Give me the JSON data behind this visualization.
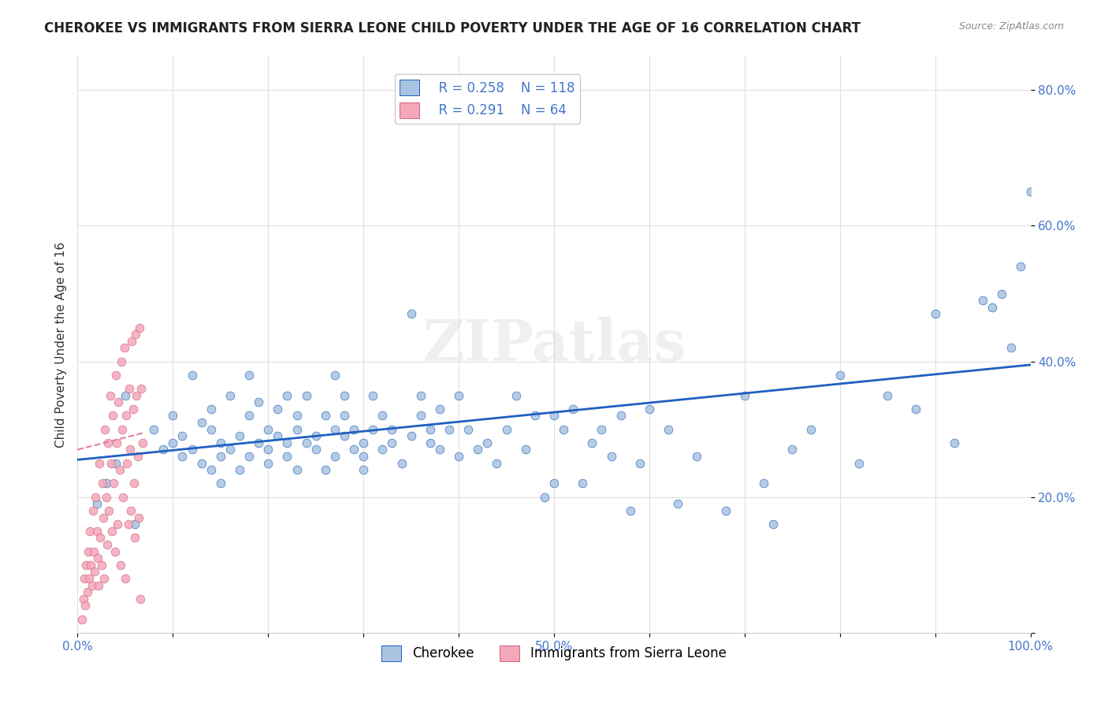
{
  "title": "CHEROKEE VS IMMIGRANTS FROM SIERRA LEONE CHILD POVERTY UNDER THE AGE OF 16 CORRELATION CHART",
  "source": "Source: ZipAtlas.com",
  "xlabel": "",
  "ylabel": "Child Poverty Under the Age of 16",
  "xlim": [
    0.0,
    1.0
  ],
  "ylim": [
    0.0,
    0.85
  ],
  "x_ticks": [
    0.0,
    0.1,
    0.2,
    0.3,
    0.4,
    0.5,
    0.6,
    0.7,
    0.8,
    0.9,
    1.0
  ],
  "x_tick_labels": [
    "0.0%",
    "",
    "",
    "",
    "",
    "50.0%",
    "",
    "",
    "",
    "",
    "100.0%"
  ],
  "y_ticks": [
    0.0,
    0.2,
    0.4,
    0.6,
    0.8
  ],
  "y_tick_labels": [
    "",
    "20.0%",
    "40.0%",
    "60.0%",
    "80.0%"
  ],
  "watermark": "ZIPatlas",
  "legend_r1": "R = 0.258",
  "legend_n1": "N = 118",
  "legend_r2": "R = 0.291",
  "legend_n2": "N = 64",
  "color_cherokee": "#a8c4e0",
  "color_sierra_leone": "#f4a7b9",
  "color_line_cherokee": "#2060c0",
  "color_line_sierra_leone": "#e080a0",
  "color_r_value": "#4477cc",
  "background_color": "#ffffff",
  "cherokee_x": [
    0.05,
    0.08,
    0.09,
    0.1,
    0.1,
    0.11,
    0.11,
    0.12,
    0.12,
    0.13,
    0.13,
    0.14,
    0.14,
    0.14,
    0.15,
    0.15,
    0.15,
    0.16,
    0.16,
    0.17,
    0.17,
    0.18,
    0.18,
    0.18,
    0.19,
    0.19,
    0.2,
    0.2,
    0.2,
    0.21,
    0.21,
    0.22,
    0.22,
    0.22,
    0.23,
    0.23,
    0.23,
    0.24,
    0.24,
    0.25,
    0.25,
    0.26,
    0.26,
    0.27,
    0.27,
    0.27,
    0.28,
    0.28,
    0.28,
    0.29,
    0.29,
    0.3,
    0.3,
    0.3,
    0.31,
    0.31,
    0.32,
    0.32,
    0.33,
    0.33,
    0.34,
    0.35,
    0.35,
    0.36,
    0.36,
    0.37,
    0.37,
    0.38,
    0.38,
    0.39,
    0.4,
    0.4,
    0.41,
    0.42,
    0.43,
    0.44,
    0.45,
    0.46,
    0.47,
    0.48,
    0.49,
    0.5,
    0.5,
    0.51,
    0.52,
    0.53,
    0.54,
    0.55,
    0.56,
    0.57,
    0.58,
    0.59,
    0.6,
    0.62,
    0.63,
    0.65,
    0.68,
    0.7,
    0.72,
    0.73,
    0.75,
    0.77,
    0.8,
    0.82,
    0.85,
    0.88,
    0.9,
    0.92,
    0.95,
    0.96,
    0.97,
    0.98,
    0.99,
    1.0,
    0.02,
    0.03,
    0.04,
    0.06
  ],
  "cherokee_y": [
    0.35,
    0.3,
    0.27,
    0.28,
    0.32,
    0.26,
    0.29,
    0.27,
    0.38,
    0.25,
    0.31,
    0.24,
    0.3,
    0.33,
    0.22,
    0.26,
    0.28,
    0.35,
    0.27,
    0.24,
    0.29,
    0.32,
    0.26,
    0.38,
    0.28,
    0.34,
    0.27,
    0.3,
    0.25,
    0.29,
    0.33,
    0.26,
    0.28,
    0.35,
    0.24,
    0.3,
    0.32,
    0.28,
    0.35,
    0.27,
    0.29,
    0.32,
    0.24,
    0.3,
    0.26,
    0.38,
    0.29,
    0.32,
    0.35,
    0.27,
    0.3,
    0.26,
    0.24,
    0.28,
    0.3,
    0.35,
    0.27,
    0.32,
    0.28,
    0.3,
    0.25,
    0.47,
    0.29,
    0.32,
    0.35,
    0.28,
    0.3,
    0.27,
    0.33,
    0.3,
    0.35,
    0.26,
    0.3,
    0.27,
    0.28,
    0.25,
    0.3,
    0.35,
    0.27,
    0.32,
    0.2,
    0.32,
    0.22,
    0.3,
    0.33,
    0.22,
    0.28,
    0.3,
    0.26,
    0.32,
    0.18,
    0.25,
    0.33,
    0.3,
    0.19,
    0.26,
    0.18,
    0.35,
    0.22,
    0.16,
    0.27,
    0.3,
    0.38,
    0.25,
    0.35,
    0.33,
    0.47,
    0.28,
    0.49,
    0.48,
    0.5,
    0.42,
    0.54,
    0.65,
    0.19,
    0.22,
    0.25,
    0.16
  ],
  "sierra_leone_x": [
    0.005,
    0.006,
    0.007,
    0.008,
    0.009,
    0.01,
    0.011,
    0.012,
    0.013,
    0.014,
    0.015,
    0.016,
    0.017,
    0.018,
    0.019,
    0.02,
    0.021,
    0.022,
    0.023,
    0.024,
    0.025,
    0.026,
    0.027,
    0.028,
    0.029,
    0.03,
    0.031,
    0.032,
    0.033,
    0.034,
    0.035,
    0.036,
    0.037,
    0.038,
    0.039,
    0.04,
    0.041,
    0.042,
    0.043,
    0.044,
    0.045,
    0.046,
    0.047,
    0.048,
    0.049,
    0.05,
    0.051,
    0.052,
    0.053,
    0.054,
    0.055,
    0.056,
    0.057,
    0.058,
    0.059,
    0.06,
    0.061,
    0.062,
    0.063,
    0.064,
    0.065,
    0.066,
    0.067,
    0.068
  ],
  "sierra_leone_y": [
    0.02,
    0.05,
    0.08,
    0.04,
    0.1,
    0.06,
    0.12,
    0.08,
    0.15,
    0.1,
    0.07,
    0.18,
    0.12,
    0.09,
    0.2,
    0.15,
    0.11,
    0.07,
    0.25,
    0.14,
    0.1,
    0.22,
    0.17,
    0.08,
    0.3,
    0.2,
    0.13,
    0.28,
    0.18,
    0.35,
    0.25,
    0.15,
    0.32,
    0.22,
    0.12,
    0.38,
    0.28,
    0.16,
    0.34,
    0.24,
    0.1,
    0.4,
    0.3,
    0.2,
    0.42,
    0.08,
    0.32,
    0.25,
    0.16,
    0.36,
    0.27,
    0.18,
    0.43,
    0.33,
    0.22,
    0.14,
    0.44,
    0.35,
    0.26,
    0.17,
    0.45,
    0.05,
    0.36,
    0.28
  ],
  "cherokee_trend_x": [
    0.0,
    1.0
  ],
  "cherokee_trend_y_start": 0.255,
  "cherokee_trend_y_end": 0.395,
  "sierra_leone_trend_x": [
    0.0,
    0.07
  ],
  "sierra_leone_trend_y_start": 0.27,
  "sierra_leone_trend_y_end": 0.295
}
